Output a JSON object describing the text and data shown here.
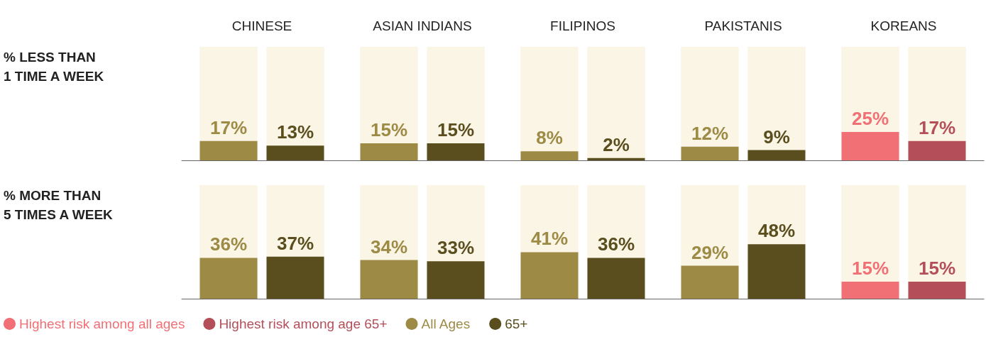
{
  "chart_data": [
    {
      "type": "bar",
      "title": "% LESS THAN\n1 TIME A WEEK",
      "categories": [
        "CHINESE",
        "ASIAN INDIANS",
        "FILIPINOS",
        "PAKISTANIS",
        "KOREANS"
      ],
      "ylim": [
        0,
        100
      ],
      "tick_labels": "x",
      "legend": false,
      "series": [
        {
          "color": "#f07075",
          "values": [
            null,
            null,
            null,
            null,
            25
          ],
          "value_labels": [
            null,
            null,
            null,
            null,
            "25%"
          ]
        },
        {
          "color": "#b44f59",
          "values": [
            null,
            null,
            null,
            null,
            17
          ],
          "value_labels": [
            null,
            null,
            null,
            null,
            "17%"
          ]
        },
        {
          "color": "#9c8a45",
          "values": [
            17,
            15,
            8,
            12,
            null
          ],
          "value_labels": [
            "17%",
            "15%",
            "8%",
            "12%",
            null
          ]
        },
        {
          "color": "#5a4e1e",
          "values": [
            13,
            15,
            2,
            9,
            null
          ],
          "value_labels": [
            "13%",
            "15%",
            "2%",
            "9%",
            null
          ]
        }
      ]
    },
    {
      "type": "bar",
      "title": "% MORE THAN\n5 TIMES A WEEK",
      "categories": [
        null,
        null,
        null,
        null,
        null
      ],
      "ylim": [
        0,
        100
      ],
      "tick_labels": false,
      "legend": "bottom left",
      "series": [
        {
          "name": "Highest risk among all ages",
          "color": "#f07075",
          "values": [
            null,
            null,
            null,
            null,
            15
          ],
          "value_labels": [
            null,
            null,
            null,
            null,
            "15%"
          ]
        },
        {
          "name": "Highest risk among age 65+",
          "color": "#b44f59",
          "values": [
            null,
            null,
            null,
            null,
            15
          ],
          "value_labels": [
            null,
            null,
            null,
            null,
            "15%"
          ]
        },
        {
          "name": "All Ages",
          "color": "#9c8a45",
          "values": [
            36,
            34,
            41,
            29,
            null
          ],
          "value_labels": [
            "36%",
            "34%",
            "41%",
            "29%",
            null
          ]
        },
        {
          "name": "65+",
          "color": "#5a4e1e",
          "values": [
            37,
            33,
            36,
            48,
            null
          ],
          "value_labels": [
            "37%",
            "33%",
            "36%",
            "48%",
            null
          ]
        }
      ]
    }
  ]
}
